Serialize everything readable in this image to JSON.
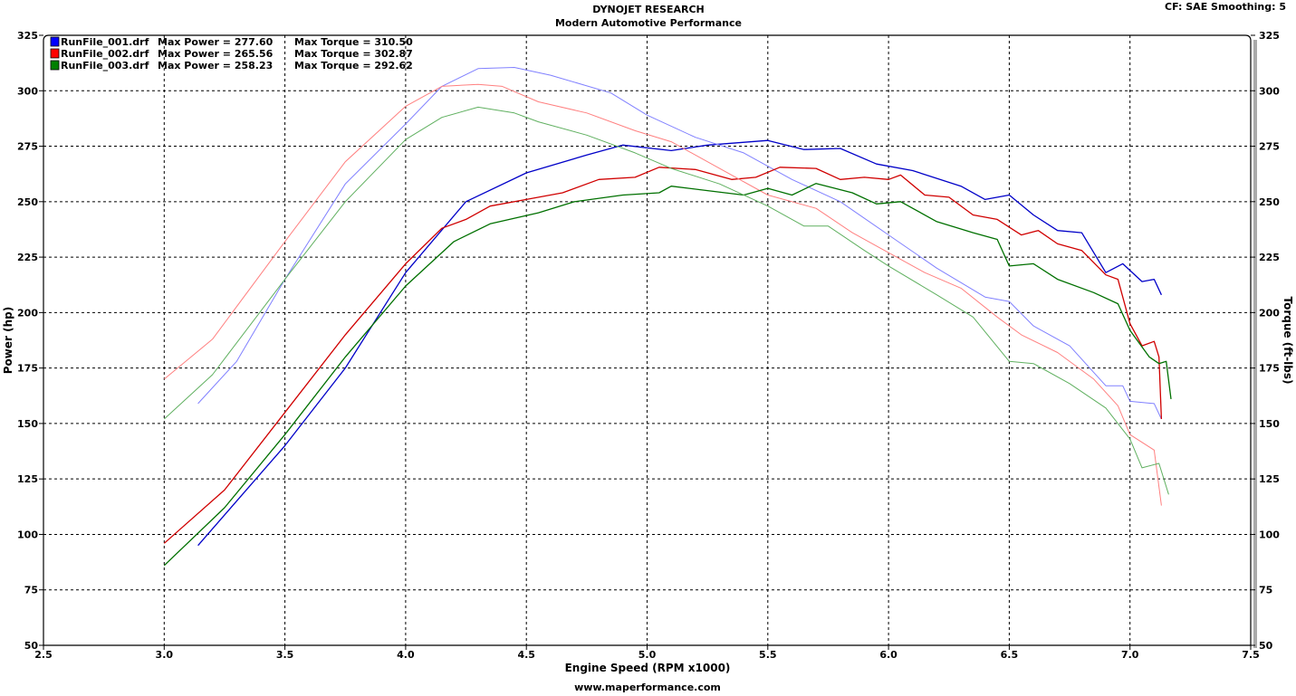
{
  "header": {
    "title": "DYNOJET RESEARCH",
    "subtitle": "Modern Automotive Performance",
    "settings": "CF: SAE  Smoothing: 5"
  },
  "footer": "www.maperformance.com",
  "chart_data": {
    "type": "line",
    "title": "DYNOJET RESEARCH",
    "xlabel": "Engine Speed (RPM x1000)",
    "ylabel": "Power (hp)",
    "y2label": "Torque (ft-lbs)",
    "xlim": [
      2.5,
      7.5
    ],
    "ylim": [
      50,
      325
    ],
    "y2lim": [
      50,
      325
    ],
    "grid": true,
    "legend_position": "top-left",
    "xticks": [
      "2.5",
      "3.0",
      "3.5",
      "4.0",
      "4.5",
      "5.0",
      "5.5",
      "6.0",
      "6.5",
      "7.0",
      "7.5"
    ],
    "yticks": [
      "50",
      "75",
      "100",
      "125",
      "150",
      "175",
      "200",
      "225",
      "250",
      "275",
      "300",
      "325"
    ],
    "legend": [
      {
        "file": "RunFile_001.drf",
        "power_label": "Max Power = 277.60",
        "torque_label": "Max Torque = 310.50",
        "color": "#0000ff"
      },
      {
        "file": "RunFile_002.drf",
        "power_label": "Max Power = 265.56",
        "torque_label": "Max Torque = 302.87",
        "color": "#ff0000"
      },
      {
        "file": "RunFile_003.drf",
        "power_label": "Max Power = 258.23",
        "torque_label": "Max Torque = 292.62",
        "color": "#008000"
      }
    ],
    "series": [
      {
        "name": "RunFile_001 Power",
        "axis": "left",
        "color": "#0000c8",
        "x": [
          3.14,
          3.5,
          3.75,
          4.0,
          4.25,
          4.5,
          4.75,
          4.9,
          5.1,
          5.25,
          5.5,
          5.65,
          5.8,
          5.95,
          6.1,
          6.3,
          6.4,
          6.5,
          6.6,
          6.7,
          6.8,
          6.9,
          6.97,
          7.05,
          7.1,
          7.13
        ],
        "y": [
          95,
          140,
          175,
          218,
          250,
          263,
          271,
          275.5,
          273,
          275.5,
          277.6,
          273.5,
          274,
          267,
          264,
          257,
          251,
          253,
          244,
          237,
          236,
          218,
          222,
          214,
          215,
          208
        ]
      },
      {
        "name": "RunFile_001 Torque",
        "axis": "right",
        "color": "#8080ff",
        "x": [
          3.14,
          3.3,
          3.5,
          3.75,
          4.0,
          4.15,
          4.3,
          4.45,
          4.6,
          4.85,
          5.0,
          5.2,
          5.4,
          5.6,
          5.8,
          6.0,
          6.2,
          6.4,
          6.5,
          6.6,
          6.75,
          6.9,
          6.97,
          7.0,
          7.1,
          7.13
        ],
        "y": [
          159,
          178,
          215,
          258,
          285,
          302,
          310,
          310.5,
          307,
          299,
          289,
          279,
          272,
          260,
          250,
          235,
          220,
          207,
          205,
          194,
          185,
          167,
          167,
          160,
          159,
          152
        ]
      },
      {
        "name": "RunFile_002 Power",
        "axis": "left",
        "color": "#d00000",
        "x": [
          3.0,
          3.25,
          3.5,
          3.75,
          4.0,
          4.15,
          4.25,
          4.35,
          4.5,
          4.65,
          4.8,
          4.95,
          5.05,
          5.2,
          5.35,
          5.45,
          5.55,
          5.7,
          5.8,
          5.9,
          6.0,
          6.05,
          6.15,
          6.25,
          6.35,
          6.45,
          6.55,
          6.62,
          6.7,
          6.8,
          6.9,
          6.95,
          7.0,
          7.05,
          7.1,
          7.12,
          7.13
        ],
        "y": [
          96,
          120,
          155,
          190,
          222,
          238,
          242,
          248,
          251,
          254,
          260,
          261,
          265.5,
          264.5,
          260,
          261,
          265.5,
          265,
          260,
          261,
          260,
          262,
          253,
          252,
          244,
          242,
          235,
          237,
          231,
          228,
          217,
          215,
          195,
          185,
          187,
          180,
          152
        ]
      },
      {
        "name": "RunFile_002 Torque",
        "axis": "right",
        "color": "#ff8080",
        "x": [
          3.0,
          3.2,
          3.5,
          3.75,
          4.0,
          4.15,
          4.3,
          4.4,
          4.55,
          4.75,
          4.95,
          5.1,
          5.3,
          5.5,
          5.7,
          5.85,
          6.0,
          6.15,
          6.3,
          6.45,
          6.55,
          6.7,
          6.85,
          6.95,
          7.0,
          7.1,
          7.13
        ],
        "y": [
          170,
          188,
          232,
          268,
          293,
          302,
          302.9,
          302,
          295,
          290,
          282,
          277,
          265,
          253,
          247,
          236,
          227,
          218,
          211,
          198,
          190,
          182,
          170,
          158,
          145,
          138,
          113
        ]
      },
      {
        "name": "RunFile_003 Power",
        "axis": "left",
        "color": "#007000",
        "x": [
          3.0,
          3.25,
          3.5,
          3.75,
          4.0,
          4.2,
          4.35,
          4.55,
          4.7,
          4.9,
          5.05,
          5.1,
          5.25,
          5.4,
          5.5,
          5.6,
          5.7,
          5.85,
          5.95,
          6.05,
          6.2,
          6.35,
          6.45,
          6.5,
          6.6,
          6.7,
          6.85,
          6.95,
          7.0,
          7.08,
          7.12,
          7.15,
          7.17
        ],
        "y": [
          86,
          112,
          145,
          180,
          212,
          232,
          240,
          245,
          250,
          253,
          254,
          257,
          255,
          253,
          256,
          253,
          258.2,
          254,
          249,
          250,
          241,
          236,
          233,
          221,
          222,
          215,
          209,
          204,
          192,
          180,
          177,
          178,
          161
        ]
      },
      {
        "name": "RunFile_003 Torque",
        "axis": "right",
        "color": "#60b060",
        "x": [
          3.0,
          3.2,
          3.5,
          3.75,
          4.0,
          4.15,
          4.3,
          4.45,
          4.55,
          4.75,
          4.95,
          5.1,
          5.3,
          5.5,
          5.65,
          5.75,
          5.9,
          6.0,
          6.2,
          6.35,
          6.5,
          6.6,
          6.75,
          6.9,
          7.0,
          7.05,
          7.12,
          7.16
        ],
        "y": [
          152,
          172,
          215,
          250,
          278,
          288,
          292.6,
          290,
          286,
          280,
          272,
          265,
          258,
          248,
          239,
          239,
          228,
          221,
          208,
          198,
          178,
          177,
          168,
          157,
          143,
          130,
          132,
          118
        ]
      }
    ]
  }
}
